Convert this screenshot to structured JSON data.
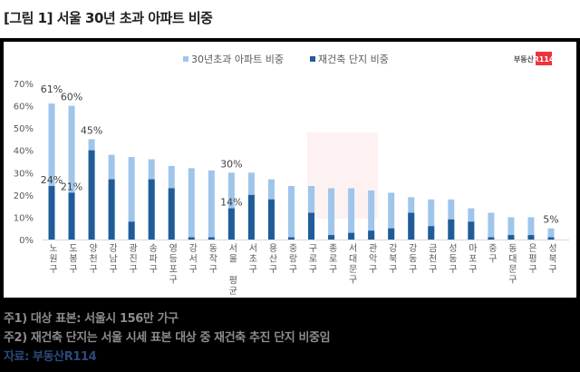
{
  "title": "[그림 1] 서울 30년 초과 아파트 비중",
  "logo": {
    "text": "부동산",
    "badge": "R114",
    "badge_color": "#ee3340"
  },
  "chart_data": {
    "type": "bar",
    "stacked": false,
    "overlap": true,
    "categories": [
      "노원구",
      "도봉구",
      "양천구",
      "강남구",
      "광진구",
      "송파구",
      "영등포구",
      "강서구",
      "동작구",
      "서울 평균",
      "서초구",
      "용산구",
      "중랑구",
      "구로구",
      "종로구",
      "서대문구",
      "관악구",
      "강북구",
      "강동구",
      "금천구",
      "성동구",
      "마포구",
      "중구",
      "동대문구",
      "은평구",
      "성북구"
    ],
    "series": [
      {
        "name": "30년초과 아파트 비중",
        "color": "#9fc5eb",
        "values": [
          61,
          60,
          45,
          38,
          37,
          36,
          33,
          32,
          31,
          30,
          30,
          27,
          24,
          24,
          23,
          23,
          22,
          21,
          19,
          18,
          18,
          14,
          12,
          10,
          10,
          5
        ]
      },
      {
        "name": "재건축 단지 비중",
        "color": "#1f5c99",
        "values": [
          24,
          21,
          40,
          27,
          8,
          27,
          23,
          1,
          1,
          14,
          20,
          18,
          1,
          12,
          2,
          3,
          4,
          5,
          12,
          6,
          9,
          8,
          1,
          2,
          2,
          1
        ]
      }
    ],
    "data_labels": [
      {
        "category": "노원구",
        "series": 0,
        "text": "61%"
      },
      {
        "category": "도봉구",
        "series": 0,
        "text": "60%"
      },
      {
        "category": "양천구",
        "series": 0,
        "text": "45%"
      },
      {
        "category": "서울 평균",
        "series": 0,
        "text": "30%"
      },
      {
        "category": "성북구",
        "series": 0,
        "text": "5%"
      },
      {
        "category": "노원구",
        "series": 1,
        "text": "24%"
      },
      {
        "category": "도봉구",
        "series": 1,
        "text": "21%"
      },
      {
        "category": "서울 평균",
        "series": 1,
        "text": "14%"
      }
    ],
    "ylim": [
      0,
      70
    ],
    "yticks": [
      "0%",
      "10%",
      "20%",
      "30%",
      "40%",
      "50%",
      "60%",
      "70%"
    ],
    "legend": "top",
    "grid": false
  },
  "notes": [
    "주1) 대상 표본: 서울시 156만 가구",
    "주2) 재건축 단지는 서울 시세 표본 대상 중 재건축 추진 단지 비중임"
  ],
  "source": "자료: 부동산R114"
}
